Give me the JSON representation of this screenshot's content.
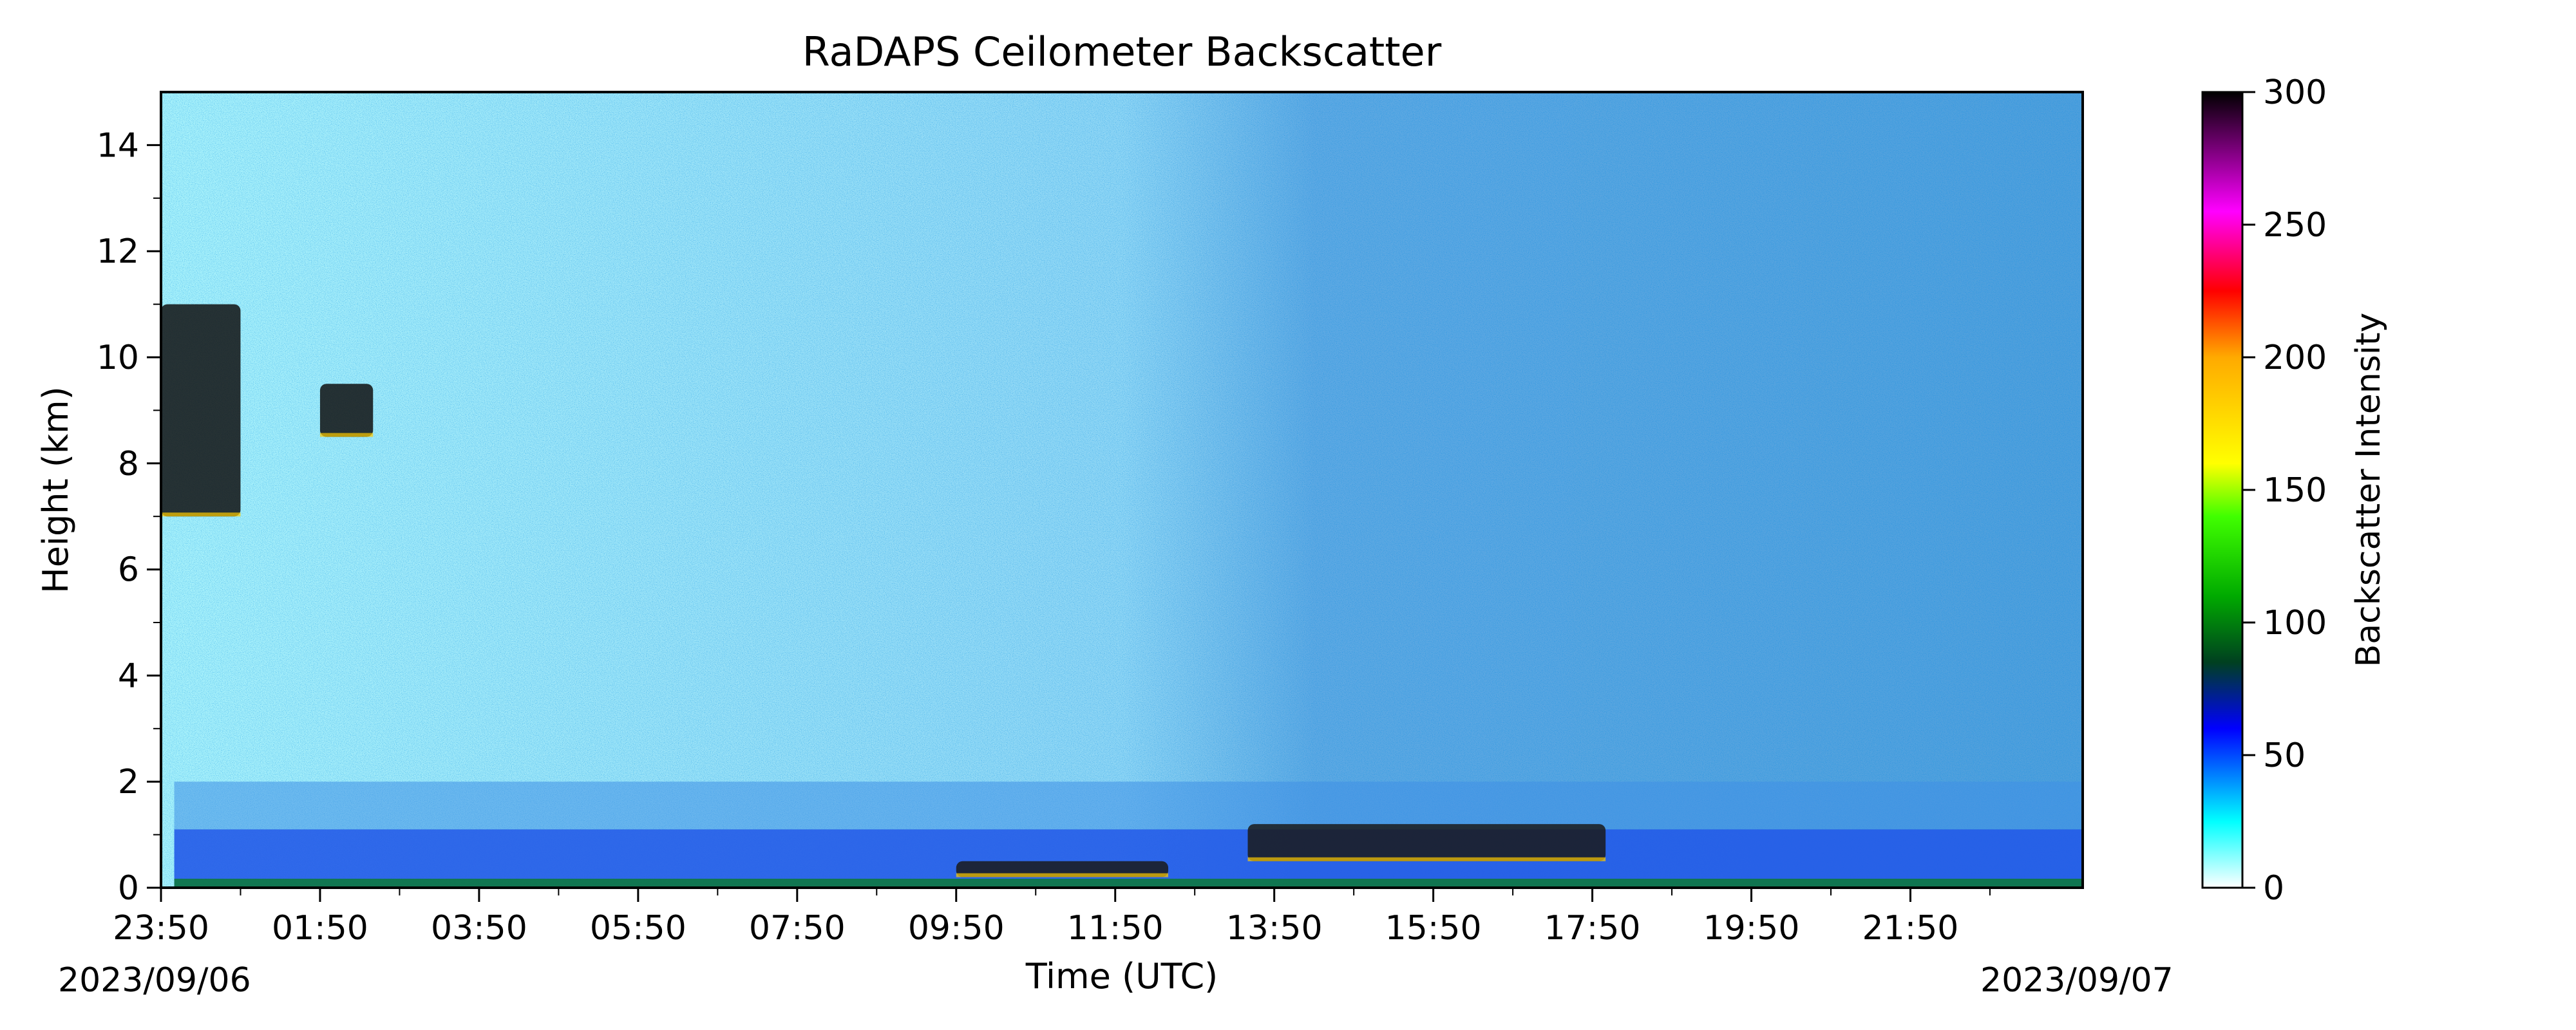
{
  "chart_data": {
    "type": "heatmap",
    "title": "RaDAPS Ceilometer Backscatter",
    "xlabel": "Time (UTC)",
    "ylabel": "Height (km)",
    "x_start_date": "2023/09/06",
    "x_end_date": "2023/09/07",
    "x_tick_labels": [
      "23:50",
      "01:50",
      "03:50",
      "05:50",
      "07:50",
      "09:50",
      "11:50",
      "13:50",
      "15:50",
      "17:50",
      "19:50",
      "21:50"
    ],
    "x_range": [
      "2023/09/06 23:50",
      "2023/09/08 00:00"
    ],
    "y_ticks": [
      0,
      2,
      4,
      6,
      8,
      10,
      12,
      14
    ],
    "ylim": [
      0,
      15
    ],
    "colorbar": {
      "label": "Backscatter Intensity",
      "ticks": [
        0,
        50,
        100,
        150,
        200,
        250,
        300
      ],
      "range": [
        0,
        300
      ],
      "stops": [
        {
          "value": 0,
          "color": "#ffffff"
        },
        {
          "value": 25,
          "color": "#00ffff"
        },
        {
          "value": 60,
          "color": "#0000ff"
        },
        {
          "value": 85,
          "color": "#004020"
        },
        {
          "value": 110,
          "color": "#00aa00"
        },
        {
          "value": 140,
          "color": "#40ff00"
        },
        {
          "value": 160,
          "color": "#ffff00"
        },
        {
          "value": 200,
          "color": "#ffaa00"
        },
        {
          "value": 225,
          "color": "#ff0000"
        },
        {
          "value": 255,
          "color": "#ff00ff"
        },
        {
          "value": 300,
          "color": "#000000"
        }
      ]
    },
    "features": [
      {
        "name": "boundary layer",
        "time_start": "00:00",
        "time_end": "23:59",
        "height_km": [
          0,
          2
        ]
      },
      {
        "name": "high cloud",
        "time_start": "23:50",
        "time_end": "00:50",
        "height_km": [
          7,
          11
        ]
      },
      {
        "name": "high cloud",
        "time_start": "01:50",
        "time_end": "02:30",
        "height_km": [
          8.5,
          9.5
        ]
      },
      {
        "name": "low cloud",
        "time_start": "09:50",
        "time_end": "12:30",
        "height_km": [
          0.2,
          0.5
        ]
      },
      {
        "name": "low cloud",
        "time_start": "13:30",
        "time_end": "18:00",
        "height_km": [
          0.5,
          1.2
        ]
      }
    ]
  }
}
